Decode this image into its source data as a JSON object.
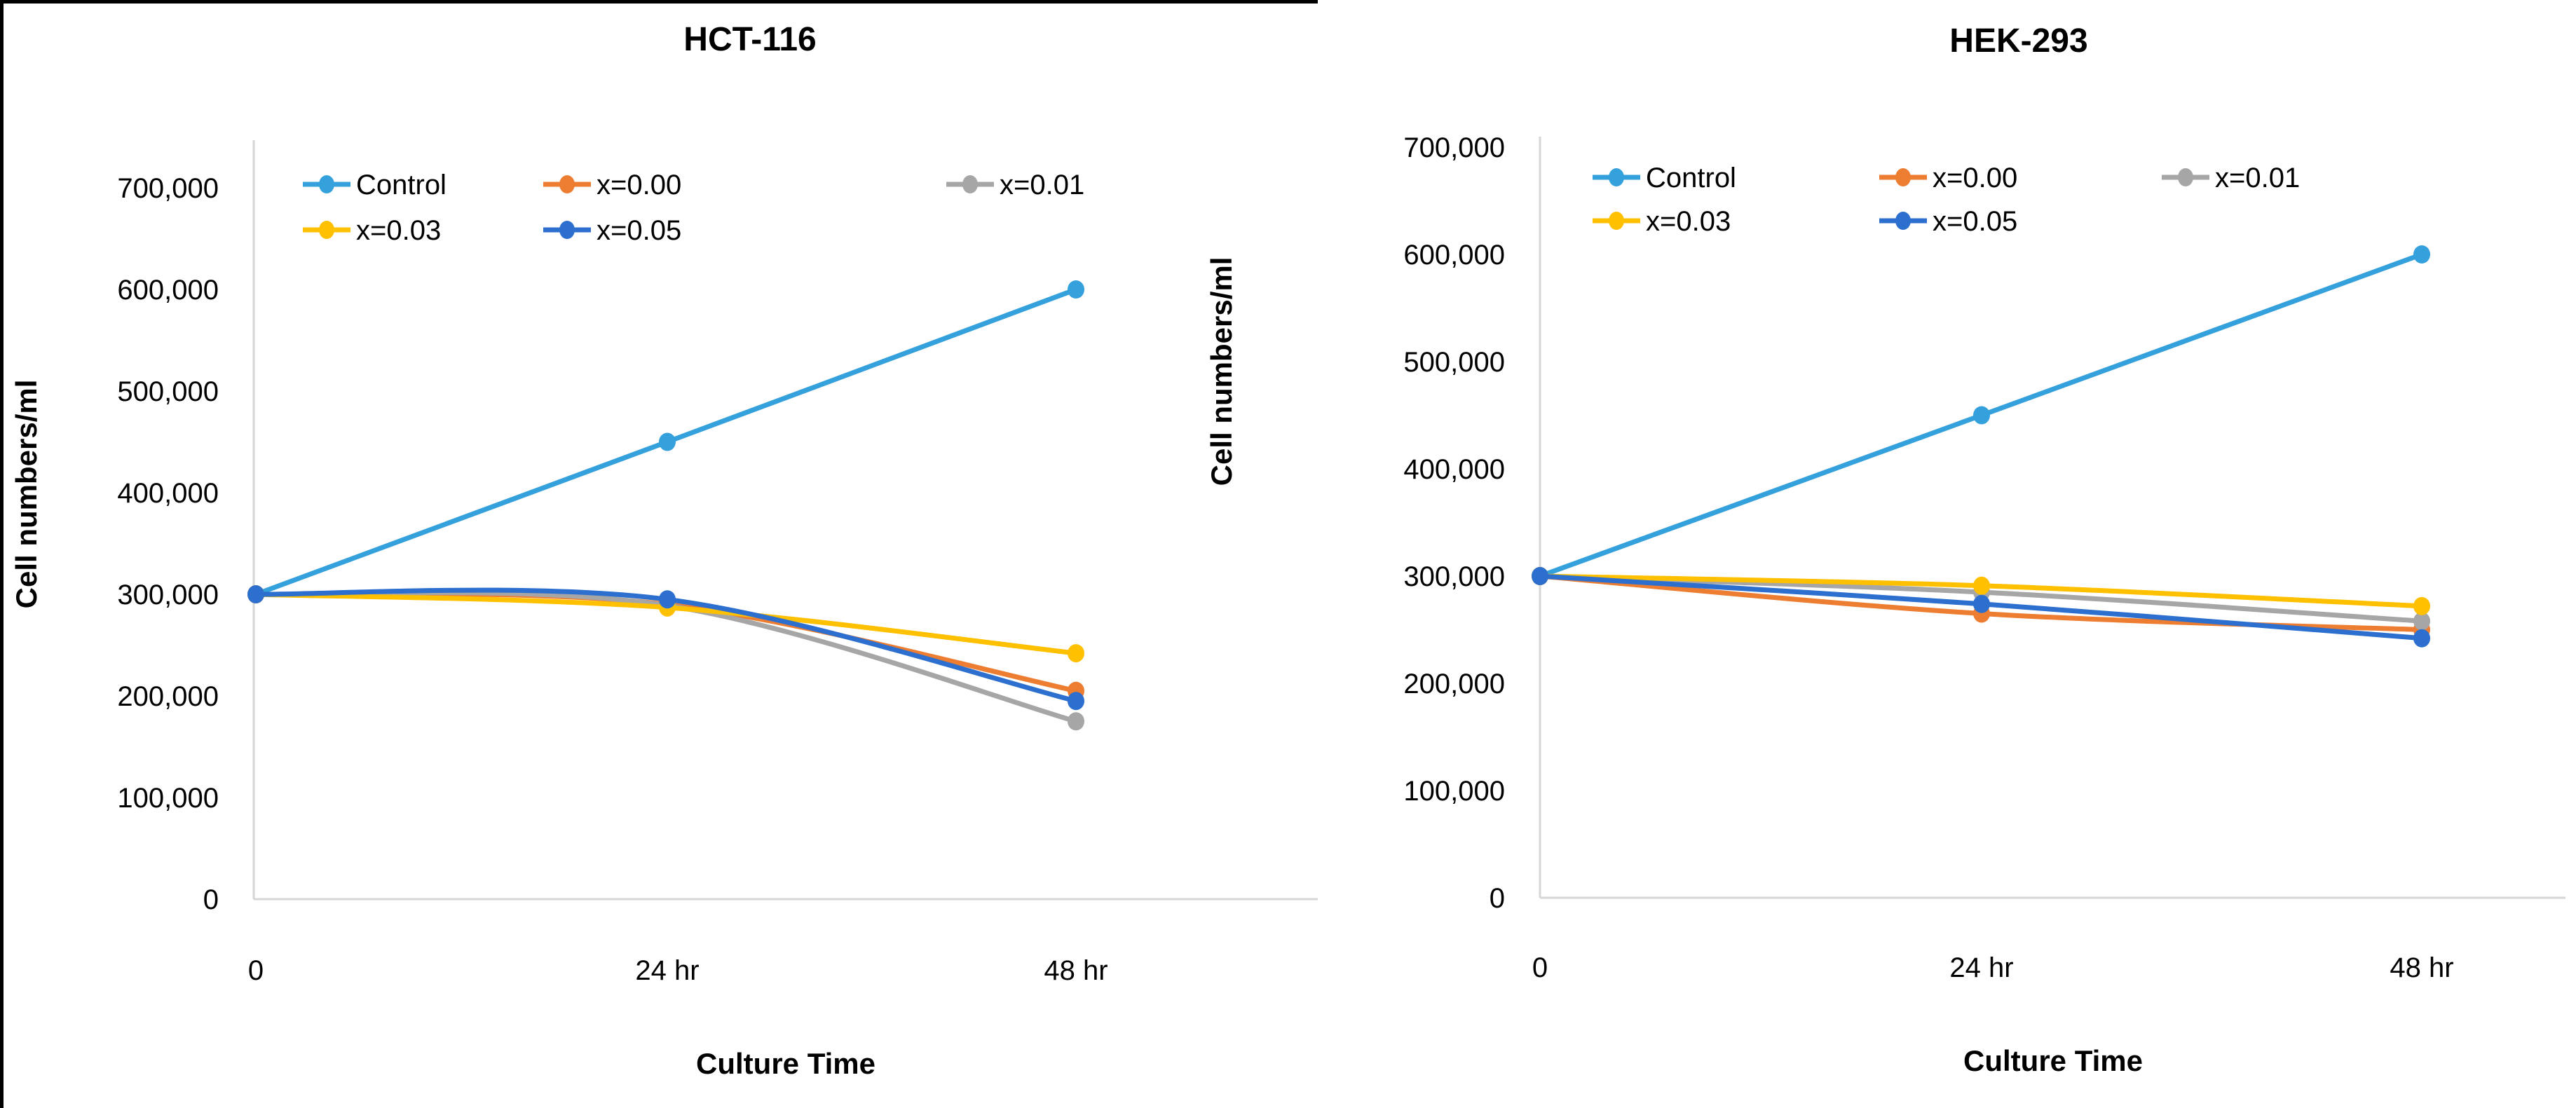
{
  "figure": {
    "background": "#ffffff",
    "border_color": "#000000",
    "axis_line_color": "#d6d6d6",
    "text_color": "#000000"
  },
  "chart_data": [
    {
      "type": "line",
      "title": "HCT-116",
      "xlabel": "Culture Time",
      "ylabel": "Cell numbers/ml",
      "categories": [
        "0",
        "24 hr",
        "48 hr"
      ],
      "ylim": [
        0,
        700000
      ],
      "ytick_step": 100000,
      "ytick_labels": [
        "0",
        "100,000",
        "200,000",
        "300,000",
        "400,000",
        "500,000",
        "600,000",
        "700,000"
      ],
      "grid": false,
      "legend_position": "inside-top-left",
      "legend_rows": [
        [
          "Control",
          "x=0.00",
          "x=0.01"
        ],
        [
          "x=0.03",
          "x=0.05"
        ]
      ],
      "series": [
        {
          "name": "Control",
          "color": "#35a1dc",
          "values": [
            300000,
            450000,
            600000
          ]
        },
        {
          "name": "x=0.00",
          "color": "#ed7d31",
          "values": [
            300000,
            290000,
            205000
          ]
        },
        {
          "name": "x=0.01",
          "color": "#a6a6a6",
          "values": [
            300000,
            289000,
            175000
          ]
        },
        {
          "name": "x=0.03",
          "color": "#ffc000",
          "values": [
            300000,
            287000,
            242000
          ]
        },
        {
          "name": "x=0.05",
          "color": "#2c6fce",
          "values": [
            300000,
            295000,
            195000
          ]
        }
      ]
    },
    {
      "type": "line",
      "title": "HEK-293",
      "xlabel": "Culture Time",
      "ylabel": "Cell numbers/ml",
      "categories": [
        "0",
        "24 hr",
        "48 hr"
      ],
      "ylim": [
        0,
        700000
      ],
      "ytick_step": 100000,
      "ytick_labels": [
        "0",
        "100,000",
        "200,000",
        "300,000",
        "400,000",
        "500,000",
        "600,000",
        "700,000"
      ],
      "grid": false,
      "legend_position": "inside-top-left",
      "legend_rows": [
        [
          "Control",
          "x=0.00",
          "x=0.01"
        ],
        [
          "x=0.03",
          "x=0.05"
        ]
      ],
      "series": [
        {
          "name": "Control",
          "color": "#35a1dc",
          "values": [
            300000,
            450000,
            600000
          ]
        },
        {
          "name": "x=0.00",
          "color": "#ed7d31",
          "values": [
            300000,
            265000,
            250000
          ]
        },
        {
          "name": "x=0.01",
          "color": "#a6a6a6",
          "values": [
            300000,
            285000,
            258000
          ]
        },
        {
          "name": "x=0.03",
          "color": "#ffc000",
          "values": [
            300000,
            291000,
            272000
          ]
        },
        {
          "name": "x=0.05",
          "color": "#2c6fce",
          "values": [
            300000,
            274000,
            242000
          ]
        }
      ]
    }
  ]
}
